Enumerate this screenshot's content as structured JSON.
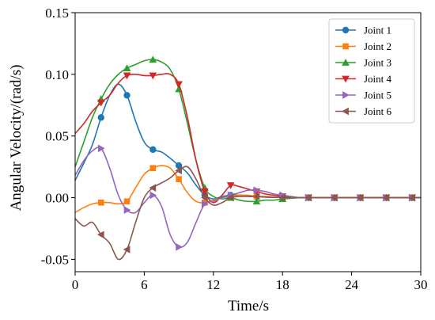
{
  "chart_data": {
    "type": "line",
    "xlabel": "Time/s",
    "ylabel": "Angular Velocity/(rad/s)",
    "xlim": [
      0,
      30
    ],
    "ylim": [
      -0.06,
      0.15
    ],
    "xticks": [
      0,
      6,
      12,
      18,
      24,
      30
    ],
    "yticks": [
      -0.05,
      0.0,
      0.05,
      0.1,
      0.15
    ],
    "ytick_labels": [
      "-0.05",
      "0.00",
      "0.05",
      "0.10",
      "0.15"
    ],
    "grid": false,
    "legend_position": "top-right",
    "series": [
      {
        "name": "Joint 1",
        "color": "#1f77b4",
        "marker": "circle",
        "x": [
          0,
          0.75,
          1.5,
          2.25,
          3,
          3.75,
          4.5,
          5.25,
          6,
          6.75,
          7.5,
          8.25,
          9,
          9.75,
          10.5,
          11.25,
          12,
          12.75,
          13.5,
          14.25,
          15,
          15.75,
          16.5,
          17.25,
          18,
          18.75,
          19.5,
          20.25,
          21,
          21.75,
          22.5,
          23.25,
          24,
          24.75,
          25.5,
          26.25,
          27,
          27.75,
          28.5,
          29.25,
          30
        ],
        "y": [
          0.014,
          0.028,
          0.043,
          0.065,
          0.083,
          0.092,
          0.083,
          0.062,
          0.045,
          0.039,
          0.037,
          0.032,
          0.026,
          0.02,
          0.01,
          0.002,
          -0.001,
          0.001,
          0.002,
          0.002,
          0.001,
          0.001,
          0.0005,
          0.0003,
          0.0002,
          0.0001,
          0,
          0,
          0,
          0,
          0,
          0,
          0,
          0,
          0,
          0,
          0,
          0,
          0,
          0,
          0
        ],
        "marker_every": 3
      },
      {
        "name": "Joint 2",
        "color": "#ff7f0e",
        "marker": "square",
        "x": [
          0,
          0.75,
          1.5,
          2.25,
          3,
          3.75,
          4.5,
          5.25,
          6,
          6.75,
          7.5,
          8.25,
          9,
          9.75,
          10.5,
          11.25,
          12,
          12.75,
          13.5,
          14.25,
          15,
          15.75,
          16.5,
          17.25,
          18,
          18.75,
          19.5,
          20.25,
          21,
          21.75,
          22.5,
          23.25,
          24,
          24.75,
          25.5,
          26.25,
          27,
          27.75,
          28.5,
          29.25,
          30
        ],
        "y": [
          -0.012,
          -0.008,
          -0.005,
          -0.004,
          -0.004,
          -0.005,
          -0.003,
          0.008,
          0.019,
          0.024,
          0.026,
          0.024,
          0.015,
          0.004,
          -0.003,
          -0.004,
          -0.002,
          0,
          0.001,
          0.002,
          0.002,
          0.001,
          0.001,
          0.0005,
          0.0003,
          0.0001,
          0,
          0,
          0,
          0,
          0,
          0,
          0,
          0,
          0,
          0,
          0,
          0,
          0,
          0,
          0
        ],
        "marker_every": 3
      },
      {
        "name": "Joint 3",
        "color": "#2ca02c",
        "marker": "triangle-up",
        "x": [
          0,
          0.75,
          1.5,
          2.25,
          3,
          3.75,
          4.5,
          5.25,
          6,
          6.75,
          7.5,
          8.25,
          9,
          9.75,
          10.5,
          11.25,
          12,
          12.75,
          13.5,
          14.25,
          15,
          15.75,
          16.5,
          17.25,
          18,
          18.75,
          19.5,
          20.25,
          21,
          21.75,
          22.5,
          23.25,
          24,
          24.75,
          25.5,
          26.25,
          27,
          27.75,
          28.5,
          29.25,
          30
        ],
        "y": [
          0.025,
          0.045,
          0.065,
          0.08,
          0.092,
          0.1,
          0.105,
          0.108,
          0.111,
          0.112,
          0.11,
          0.104,
          0.088,
          0.06,
          0.03,
          0.008,
          0.001,
          -0.001,
          0,
          -0.002,
          -0.003,
          -0.003,
          -0.002,
          -0.002,
          -0.001,
          -0.0005,
          0,
          0,
          0,
          0,
          0,
          0,
          0,
          0,
          0,
          0,
          0,
          0,
          0,
          0,
          0
        ],
        "marker_every": 3
      },
      {
        "name": "Joint 4",
        "color": "#d62728",
        "marker": "triangle-down",
        "x": [
          0,
          0.75,
          1.5,
          2.25,
          3,
          3.75,
          4.5,
          5.25,
          6,
          6.75,
          7.5,
          8.25,
          9,
          9.75,
          10.5,
          11.25,
          12,
          12.75,
          13.5,
          14.25,
          15,
          15.75,
          16.5,
          17.25,
          18,
          18.75,
          19.5,
          20.25,
          21,
          21.75,
          22.5,
          23.25,
          24,
          24.75,
          25.5,
          26.25,
          27,
          27.75,
          28.5,
          29.25,
          30
        ],
        "y": [
          0.052,
          0.06,
          0.07,
          0.077,
          0.083,
          0.093,
          0.099,
          0.1,
          0.099,
          0.099,
          0.1,
          0.1,
          0.092,
          0.065,
          0.03,
          0.005,
          -0.004,
          0.002,
          0.01,
          0.009,
          0.007,
          0.005,
          0.003,
          0.002,
          0.001,
          0.0005,
          0,
          0,
          0,
          0,
          0,
          0,
          0,
          0,
          0,
          0,
          0,
          0,
          0,
          0,
          0
        ],
        "marker_every": 3
      },
      {
        "name": "Joint 5",
        "color": "#9467bd",
        "marker": "triangle-right",
        "x": [
          0,
          0.75,
          1.5,
          2.25,
          3,
          3.75,
          4.5,
          5.25,
          6,
          6.75,
          7.5,
          8.25,
          9,
          9.75,
          10.5,
          11.25,
          12,
          12.75,
          13.5,
          14.25,
          15,
          15.75,
          16.5,
          17.25,
          18,
          18.75,
          19.5,
          20.25,
          21,
          21.75,
          22.5,
          23.25,
          24,
          24.75,
          25.5,
          26.25,
          27,
          27.75,
          28.5,
          29.25,
          30
        ],
        "y": [
          0.018,
          0.03,
          0.038,
          0.04,
          0.024,
          0.002,
          -0.01,
          -0.012,
          -0.004,
          0.002,
          -0.007,
          -0.03,
          -0.04,
          -0.036,
          -0.02,
          -0.005,
          -0.003,
          0,
          0.002,
          0.004,
          0.006,
          0.006,
          0.005,
          0.003,
          0.002,
          0.001,
          0,
          0,
          0,
          0,
          0,
          0,
          0,
          0,
          0,
          0,
          0,
          0,
          0,
          0,
          0
        ],
        "marker_every": 3
      },
      {
        "name": "Joint 6",
        "color": "#8c564b",
        "marker": "triangle-left",
        "x": [
          0,
          0.75,
          1.5,
          2.25,
          3,
          3.75,
          4.5,
          5.25,
          6,
          6.75,
          7.5,
          8.25,
          9,
          9.75,
          10.5,
          11.25,
          12,
          12.75,
          13.5,
          14.25,
          15,
          15.75,
          16.5,
          17.25,
          18,
          18.75,
          19.5,
          20.25,
          21,
          21.75,
          22.5,
          23.25,
          24,
          24.75,
          25.5,
          26.25,
          27,
          27.75,
          28.5,
          29.25,
          30
        ],
        "y": [
          -0.017,
          -0.023,
          -0.02,
          -0.03,
          -0.037,
          -0.05,
          -0.042,
          -0.02,
          0.0,
          0.008,
          0.012,
          0.016,
          0.022,
          0.025,
          0.015,
          0.0,
          -0.006,
          -0.004,
          0.0,
          0.001,
          0.001,
          0.001,
          0.0005,
          0.0003,
          0.0002,
          0.0001,
          0,
          0,
          0,
          0,
          0,
          0,
          0,
          0,
          0,
          0,
          0,
          0,
          0,
          0,
          0
        ],
        "marker_every": 3
      }
    ]
  }
}
